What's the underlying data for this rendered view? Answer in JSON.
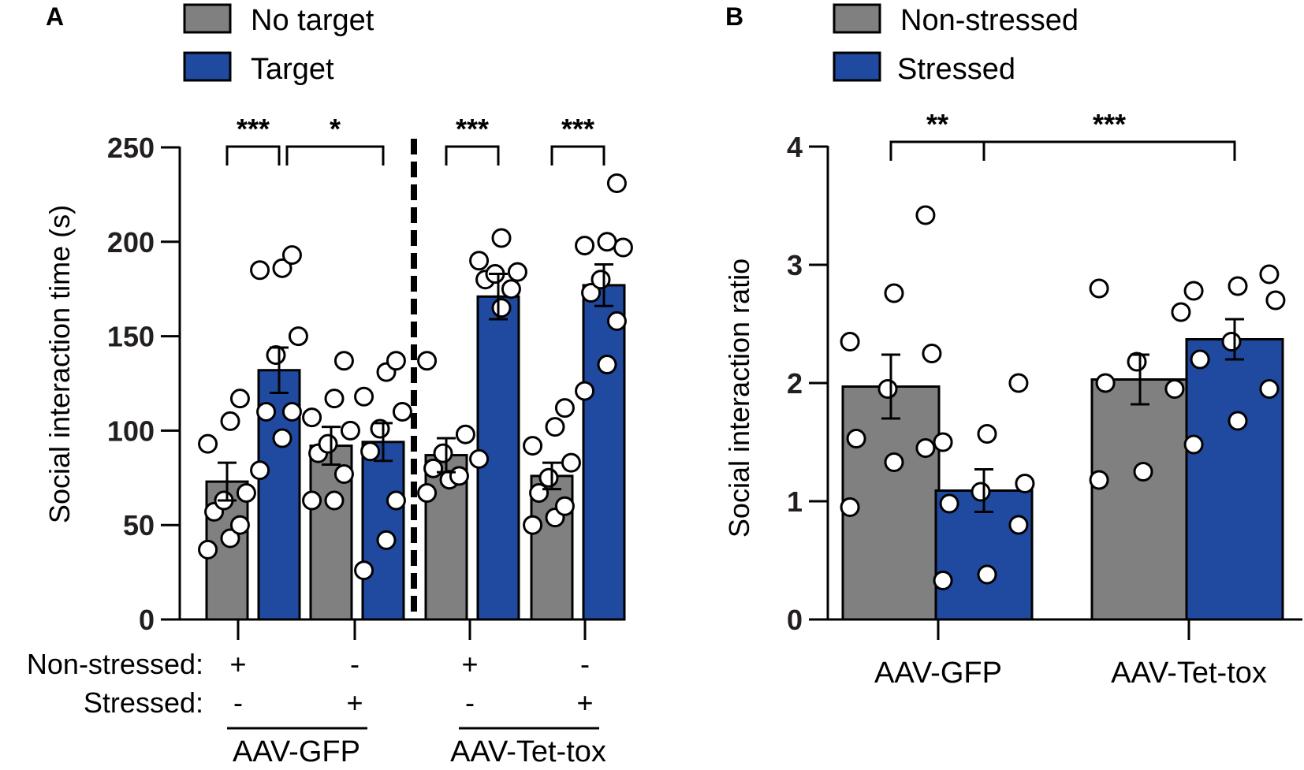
{
  "colors": {
    "no_target": "#808080",
    "target": "#1f4aa0",
    "axis": "#000000",
    "point_fill": "#ffffff"
  },
  "chart_data": [
    {
      "panel": "A",
      "type": "bar",
      "legend": [
        {
          "label": "No target",
          "color": "#808080"
        },
        {
          "label": "Target",
          "color": "#1f4aa0"
        }
      ],
      "ylabel": "Social interaction time (s)",
      "ylim": [
        0,
        250
      ],
      "yticks": [
        0,
        50,
        100,
        150,
        200,
        250
      ],
      "rows": [
        {
          "label": "Non-stressed:",
          "signs": [
            "+",
            "-",
            "+",
            "-"
          ]
        },
        {
          "label": "Stressed:",
          "signs": [
            "-",
            "+",
            "-",
            "+"
          ]
        }
      ],
      "groups": [
        "AAV-GFP",
        "AAV-Tet-tox"
      ],
      "bars": [
        {
          "series": "No target",
          "mean": 73,
          "sem": 10,
          "points": [
            37,
            43,
            50,
            57,
            63,
            67,
            93,
            105,
            117
          ]
        },
        {
          "series": "Target",
          "mean": 132,
          "sem": 12,
          "points": [
            79,
            96,
            110,
            110,
            140,
            150,
            185,
            186,
            193
          ]
        },
        {
          "series": "No target",
          "mean": 92,
          "sem": 10,
          "points": [
            63,
            63,
            77,
            88,
            93,
            100,
            107,
            117,
            137
          ]
        },
        {
          "series": "Target",
          "mean": 94,
          "sem": 10,
          "points": [
            26,
            42,
            63,
            89,
            101,
            110,
            118,
            131,
            137
          ]
        },
        {
          "series": "No target",
          "mean": 87,
          "sem": 9,
          "points": [
            67,
            74,
            76,
            80,
            88,
            98,
            137
          ]
        },
        {
          "series": "Target",
          "mean": 171,
          "sem": 12,
          "points": [
            85,
            165,
            175,
            180,
            183,
            184,
            190,
            202
          ]
        },
        {
          "series": "No target",
          "mean": 76,
          "sem": 7,
          "points": [
            50,
            54,
            60,
            67,
            75,
            83,
            92,
            102,
            112
          ]
        },
        {
          "series": "Target",
          "mean": 177,
          "sem": 11,
          "points": [
            121,
            135,
            158,
            173,
            180,
            197,
            198,
            200,
            231
          ]
        }
      ],
      "significance": [
        {
          "label": "***",
          "from_bar": 0,
          "to_bar": 1
        },
        {
          "label": "*",
          "from_bar": 1,
          "to_bar": 3
        },
        {
          "label": "***",
          "from_bar": 4,
          "to_bar": 5
        },
        {
          "label": "***",
          "from_bar": 6,
          "to_bar": 7
        }
      ]
    },
    {
      "panel": "B",
      "type": "bar",
      "legend": [
        {
          "label": "Non-stressed",
          "color": "#808080"
        },
        {
          "label": "Stressed",
          "color": "#1f4aa0"
        }
      ],
      "ylabel": "Social interaction ratio",
      "ylim": [
        0,
        4
      ],
      "yticks": [
        0,
        1,
        2,
        3,
        4
      ],
      "categories": [
        "AAV-GFP",
        "AAV-Tet-tox"
      ],
      "bars": [
        {
          "series": "Non-stressed",
          "category": "AAV-GFP",
          "mean": 1.97,
          "sem": 0.27,
          "points": [
            0.95,
            1.33,
            1.45,
            1.53,
            1.95,
            2.25,
            2.35,
            2.76,
            3.42
          ]
        },
        {
          "series": "Stressed",
          "category": "AAV-GFP",
          "mean": 1.09,
          "sem": 0.18,
          "points": [
            0.33,
            0.38,
            0.8,
            0.98,
            1.08,
            1.15,
            1.5,
            1.57,
            2.0
          ]
        },
        {
          "series": "Non-stressed",
          "category": "AAV-Tet-tox",
          "mean": 2.03,
          "sem": 0.21,
          "points": [
            1.18,
            1.25,
            1.95,
            2.0,
            2.18,
            2.6,
            2.8
          ]
        },
        {
          "series": "Stressed",
          "category": "AAV-Tet-tox",
          "mean": 2.37,
          "sem": 0.17,
          "points": [
            1.48,
            1.68,
            1.95,
            2.2,
            2.35,
            2.7,
            2.78,
            2.82,
            2.92
          ]
        }
      ],
      "significance": [
        {
          "label": "**",
          "from_bar": 0,
          "to_bar": 1
        },
        {
          "label": "***",
          "from_bar": 1,
          "to_bar": 3
        }
      ]
    }
  ]
}
